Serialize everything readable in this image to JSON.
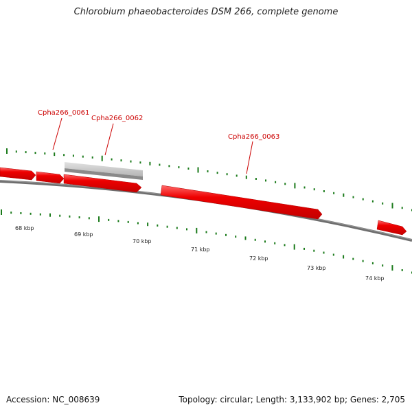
{
  "title": "Chlorobium phaeobacteroides DSM 266, complete genome",
  "footer": {
    "accession": "Accession: NC_008639",
    "summary": "Topology: circular; Length: 3,133,902 bp; Genes: 2,705"
  },
  "gene_labels": [
    "Cpha266_0061",
    "Cpha266_0062",
    "Cpha266_0063"
  ],
  "scale_labels": [
    "68 kbp",
    "69 kbp",
    "70 kbp",
    "71 kbp",
    "72 kbp",
    "73 kbp",
    "74 kbp"
  ],
  "colors": {
    "gene_fill": "#ee0000",
    "gene_top": "#ff5555",
    "gene_label": "#cc0000",
    "pseudo_gene": "#c8c8c8",
    "backbone": "#777777",
    "tick": "#1a7a1a"
  }
}
